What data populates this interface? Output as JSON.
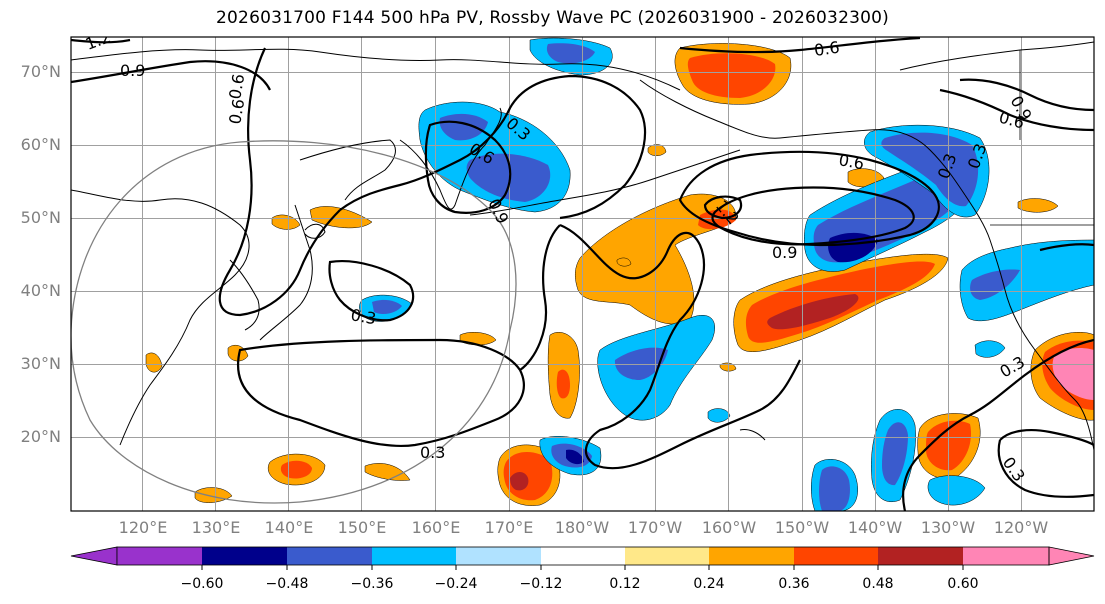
{
  "title": "2026031700 F144 500 hPa PV, Rossby Wave PC (2026031900 - 2026032300)",
  "lat_labels": [
    "70°N",
    "60°N",
    "50°N",
    "40°N",
    "30°N",
    "20°N"
  ],
  "lon_labels": [
    "120°E",
    "130°E",
    "140°E",
    "150°E",
    "160°E",
    "170°E",
    "180°W",
    "170°W",
    "160°W",
    "150°W",
    "140°W",
    "130°W",
    "120°W"
  ],
  "contour_labels": [
    "1.2",
    "0.9",
    "0.6",
    "0.3",
    "0.6",
    "0.9",
    "0.3",
    "0.6",
    "0.6",
    "0.3",
    "0.9",
    "1.2",
    "0.6",
    "0.9",
    "0.6",
    "0.3",
    "0.3",
    "0.3",
    "0.3"
  ],
  "colorbar": {
    "ticks": [
      "−0.60",
      "−0.48",
      "−0.36",
      "−0.24",
      "−0.12",
      "0.12",
      "0.24",
      "0.36",
      "0.48",
      "0.60"
    ],
    "colors": [
      "#9932cc",
      "#00008b",
      "#3a5bcd",
      "#00bfff",
      "#b0e2ff",
      "#ffffff",
      "#ffe889",
      "#ffa500",
      "#ff4500",
      "#b22222",
      "#ff85b5"
    ]
  },
  "chart_data": {
    "type": "heatmap",
    "projection": "Plate Carrée, Pacific-centred",
    "lat_range": [
      10,
      75
    ],
    "lon_range_deg_east": [
      110,
      255
    ],
    "fill_variable": "Rossby Wave PC",
    "contour_variable": "500 hPa PV",
    "contour_levels": [
      0.3,
      0.6,
      0.9,
      1.2
    ],
    "colorbar_levels": [
      -0.6,
      -0.48,
      -0.36,
      -0.24,
      -0.12,
      0.12,
      0.24,
      0.36,
      0.48,
      0.6
    ],
    "anomalies": [
      {
        "sign": "positive",
        "value": 0.6,
        "lat": 31,
        "lon_deg_east": 242
      },
      {
        "sign": "positive",
        "value": 0.48,
        "lat": 39,
        "lon_deg_east": 211
      },
      {
        "sign": "positive",
        "value": 0.36,
        "lat": 70,
        "lon_deg_east": 200
      },
      {
        "sign": "positive",
        "value": 0.36,
        "lat": 22,
        "lon_deg_east": 225
      },
      {
        "sign": "positive",
        "value": 0.36,
        "lat": 16,
        "lon_deg_east": 174
      },
      {
        "sign": "positive",
        "value": 0.24,
        "lat": 48,
        "lon_deg_east": 186
      },
      {
        "sign": "positive",
        "value": 0.24,
        "lat": 31,
        "lon_deg_east": 179
      },
      {
        "sign": "negative",
        "value": -0.48,
        "lat": 46,
        "lon_deg_east": 215
      },
      {
        "sign": "negative",
        "value": -0.48,
        "lat": 55,
        "lon_deg_east": 226
      },
      {
        "sign": "negative",
        "value": -0.36,
        "lat": 55,
        "lon_deg_east": 173
      },
      {
        "sign": "negative",
        "value": -0.36,
        "lat": 73,
        "lon_deg_east": 175
      },
      {
        "sign": "negative",
        "value": -0.48,
        "lat": 18,
        "lon_deg_east": 180
      },
      {
        "sign": "negative",
        "value": -0.36,
        "lat": 15,
        "lon_deg_east": 216
      },
      {
        "sign": "negative",
        "value": -0.24,
        "lat": 33,
        "lon_deg_east": 188
      }
    ]
  }
}
